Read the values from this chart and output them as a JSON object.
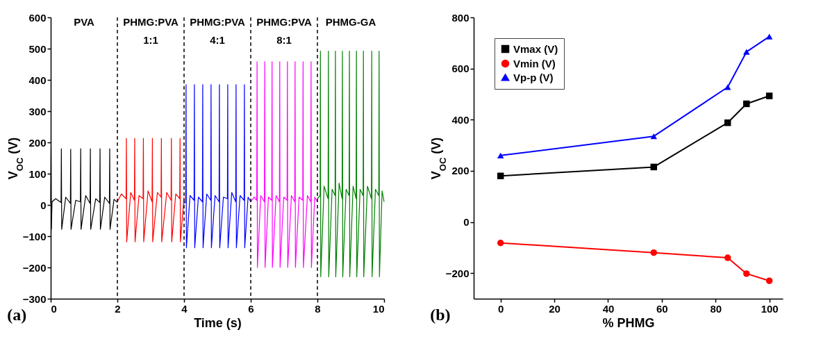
{
  "chart_data": [
    {
      "type": "line",
      "title": "(a)",
      "xlabel": "Time (s)",
      "ylabel": "V$_{OC}$ (V)",
      "xlim": [
        0,
        10
      ],
      "ylim": [
        -300,
        600
      ],
      "xticks": [
        0,
        2,
        4,
        6,
        8,
        10
      ],
      "yticks": [
        -300,
        -200,
        -100,
        0,
        100,
        200,
        300,
        400,
        500,
        600
      ],
      "grid": false,
      "annotations": [
        "PVA",
        "PHMG:PVA\n1:1",
        "PHMG:PVA\n4:1",
        "PHMG:PVA\n8:1",
        "PHMG-GA"
      ],
      "ref_lines": [
        {
          "axis": "x",
          "value": 2,
          "color": "#000000",
          "line_style": "dashed"
        },
        {
          "axis": "x",
          "value": 4,
          "color": "#000000",
          "line_style": "dashed"
        },
        {
          "axis": "x",
          "value": 6,
          "color": "#000000",
          "line_style": "dashed"
        },
        {
          "axis": "x",
          "value": 8,
          "color": "#000000",
          "line_style": "dashed"
        }
      ],
      "series": [
        {
          "color": "#000000",
          "x": [
            0,
            0.01,
            0.02,
            0.04,
            0.15,
            0.31,
            0.32,
            0.33,
            0.45,
            0.59,
            0.6,
            0.61,
            0.75,
            0.89,
            0.9,
            0.91,
            1.05,
            1.18,
            1.19,
            1.2,
            1.35,
            1.47,
            1.48,
            1.49,
            1.62,
            1.76,
            1.77,
            1.78,
            1.9,
            2.0
          ],
          "values": [
            5,
            180,
            -78,
            10,
            20,
            8,
            180,
            -78,
            25,
            5,
            178,
            -78,
            15,
            10,
            180,
            -78,
            30,
            5,
            180,
            -78,
            20,
            8,
            180,
            -78,
            25,
            5,
            180,
            -78,
            18,
            8
          ]
        },
        {
          "color": "#ff0000",
          "x": [
            2.0,
            2.12,
            2.26,
            2.27,
            2.28,
            2.4,
            2.51,
            2.52,
            2.53,
            2.65,
            2.77,
            2.78,
            2.79,
            2.92,
            3.04,
            3.05,
            3.06,
            3.2,
            3.31,
            3.32,
            3.33,
            3.48,
            3.61,
            3.62,
            3.63,
            3.75,
            3.87,
            3.88,
            3.89,
            4.0
          ],
          "values": [
            10,
            35,
            20,
            213,
            -118,
            40,
            15,
            213,
            -118,
            30,
            20,
            213,
            -118,
            45,
            10,
            213,
            -118,
            40,
            25,
            213,
            -118,
            40,
            15,
            213,
            -118,
            35,
            20,
            213,
            -118,
            25
          ]
        },
        {
          "color": "#0000ff",
          "x": [
            4.0,
            4.05,
            4.06,
            4.07,
            4.18,
            4.3,
            4.31,
            4.32,
            4.43,
            4.55,
            4.56,
            4.57,
            4.68,
            4.8,
            4.81,
            4.82,
            4.93,
            5.05,
            5.06,
            5.07,
            5.18,
            5.3,
            5.31,
            5.32,
            5.43,
            5.55,
            5.56,
            5.57,
            5.68,
            5.8,
            5.81,
            5.82,
            5.92,
            6.0
          ],
          "values": [
            5,
            10,
            385,
            -137,
            30,
            15,
            385,
            -137,
            25,
            10,
            385,
            -137,
            35,
            15,
            385,
            -137,
            30,
            10,
            385,
            -137,
            25,
            20,
            385,
            -137,
            40,
            10,
            385,
            -137,
            30,
            15,
            385,
            -137,
            25,
            10
          ]
        },
        {
          "color": "#ff00ff",
          "x": [
            6.0,
            6.1,
            6.18,
            6.19,
            6.2,
            6.3,
            6.41,
            6.42,
            6.43,
            6.53,
            6.63,
            6.64,
            6.65,
            6.76,
            6.86,
            6.87,
            6.88,
            6.99,
            7.09,
            7.1,
            7.11,
            7.22,
            7.32,
            7.33,
            7.34,
            7.45,
            7.56,
            7.57,
            7.58,
            7.7,
            7.8,
            7.81,
            7.82,
            7.92,
            8.0
          ],
          "values": [
            10,
            25,
            15,
            458,
            -200,
            30,
            10,
            458,
            -200,
            25,
            15,
            458,
            -200,
            30,
            10,
            458,
            -200,
            25,
            15,
            458,
            -200,
            30,
            10,
            458,
            -200,
            25,
            15,
            458,
            -200,
            30,
            10,
            458,
            -200,
            25,
            10
          ]
        },
        {
          "color": "#008000",
          "x": [
            8.0,
            8.08,
            8.09,
            8.1,
            8.2,
            8.32,
            8.33,
            8.34,
            8.44,
            8.53,
            8.54,
            8.55,
            8.65,
            8.74,
            8.75,
            8.76,
            8.86,
            8.95,
            8.96,
            8.97,
            9.07,
            9.16,
            9.17,
            9.18,
            9.28,
            9.37,
            9.38,
            9.39,
            9.5,
            9.62,
            9.63,
            9.64,
            9.74,
            9.84,
            9.85,
            9.86,
            9.94,
            10.0
          ],
          "values": [
            20,
            30,
            492,
            -230,
            60,
            20,
            492,
            -230,
            50,
            30,
            492,
            -230,
            70,
            20,
            492,
            -230,
            50,
            30,
            492,
            -230,
            60,
            20,
            492,
            -230,
            50,
            30,
            492,
            -230,
            60,
            20,
            492,
            -230,
            50,
            30,
            492,
            -230,
            45,
            10
          ]
        }
      ]
    },
    {
      "type": "line",
      "title": "(b)",
      "xlabel": "% PHMG",
      "ylabel": "V$_{OC}$ (V)",
      "x": [
        0,
        57,
        84.5,
        91.5,
        100
      ],
      "xlim": [
        -10,
        105
      ],
      "ylim": [
        -300,
        800
      ],
      "xticks": [
        0,
        20,
        40,
        60,
        80,
        100
      ],
      "yticks": [
        -200,
        0,
        200,
        400,
        600,
        800
      ],
      "grid": false,
      "legend": "top left",
      "series": [
        {
          "name": "Vmax (V)",
          "color": "#000000",
          "marker": "square",
          "values": [
            180,
            215,
            388,
            462,
            493
          ]
        },
        {
          "name": "Vmin (V)",
          "color": "#ff0000",
          "marker": "circle",
          "values": [
            -82,
            -120,
            -140,
            -202,
            -230
          ]
        },
        {
          "name": "Vp-p (V)",
          "color": "#0000ff",
          "marker": "triangle",
          "values": [
            260,
            335,
            527,
            665,
            725
          ]
        }
      ]
    }
  ]
}
